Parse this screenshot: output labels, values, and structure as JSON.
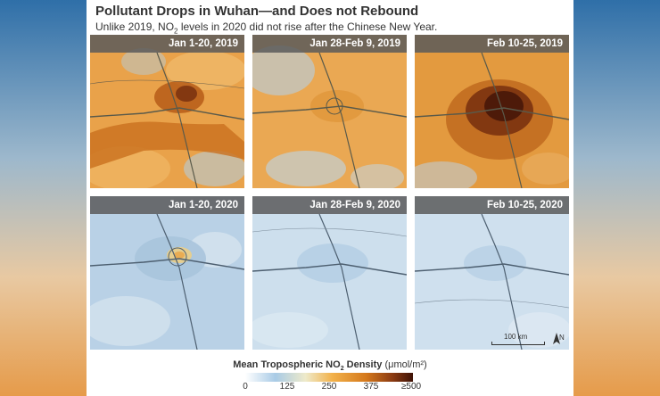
{
  "title": "Pollutant Drops in Wuhan—and Does not Rebound",
  "subtitle": {
    "prefix": "Unlike 2019, NO",
    "sub": "2",
    "suffix": " levels in 2020 did not rise after the Chinese New Year."
  },
  "panels": [
    {
      "label": "Jan 1-20, 2019",
      "level": "high"
    },
    {
      "label": "Jan 28-Feb 9, 2019",
      "level": "medium"
    },
    {
      "label": "Feb 10-25, 2019",
      "level": "very-high"
    },
    {
      "label": "Jan 1-20, 2020",
      "level": "low"
    },
    {
      "label": "Jan 28-Feb 9, 2020",
      "level": "very-low"
    },
    {
      "label": "Feb 10-25, 2020",
      "level": "very-low"
    }
  ],
  "scale": {
    "label": "100 km",
    "north": "N"
  },
  "legend": {
    "title_prefix": "Mean Tropospheric NO",
    "title_sub": "2",
    "title_suffix": " Density",
    "unit": "(μmol/m²)",
    "ticks": [
      "0",
      "125",
      "250",
      "375",
      "≥500"
    ],
    "colors": [
      "#ffffff",
      "#a9cbe6",
      "#eeeaca",
      "#f2b14a",
      "#d5791c",
      "#8a3a12",
      "#3e1206"
    ]
  }
}
